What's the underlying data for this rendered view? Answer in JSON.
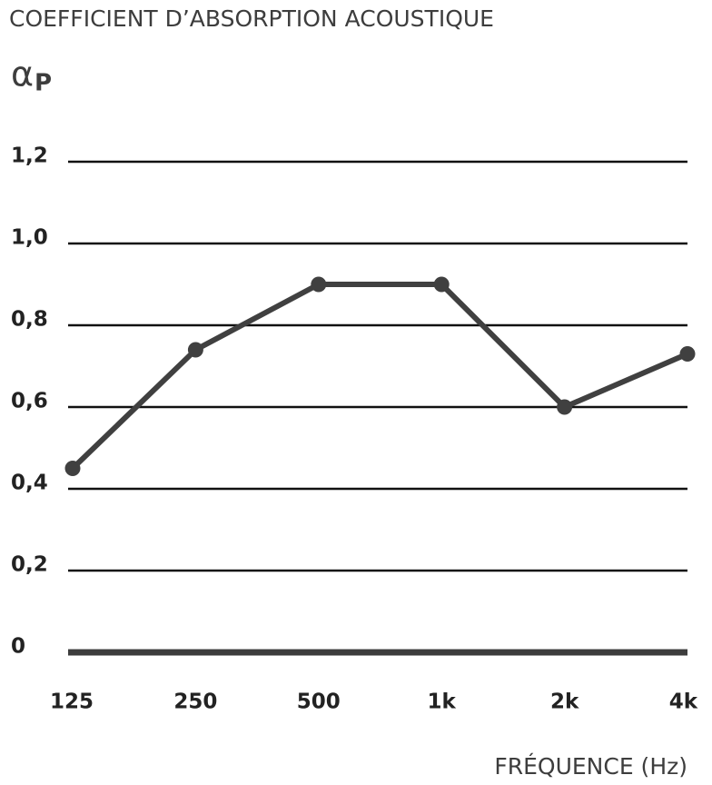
{
  "chart_data": {
    "type": "line",
    "title": "COEFFICIENT D’ABSORPTION ACOUSTIQUE",
    "y_label": "α",
    "y_label_subscript": "P",
    "x_label": "FRÉQUENCE (Hz)",
    "categories": [
      "125",
      "250",
      "500",
      "1k",
      "2k",
      "4k"
    ],
    "values": [
      0.45,
      0.74,
      0.9,
      0.9,
      0.6,
      0.73
    ],
    "color": "#404040",
    "ylim": [
      0,
      1.2
    ],
    "yticks": [
      0,
      {
        "value": 0.2,
        "label": "0,2"
      },
      {
        "value": 0.4,
        "label": "0,4"
      },
      {
        "value": 0.6,
        "label": "0,6"
      },
      {
        "value": 0.8,
        "label": "0,8"
      },
      {
        "value": 1.0,
        "label": "1,0"
      },
      {
        "value": 1.2,
        "label": "1,2"
      }
    ],
    "grid": true
  }
}
